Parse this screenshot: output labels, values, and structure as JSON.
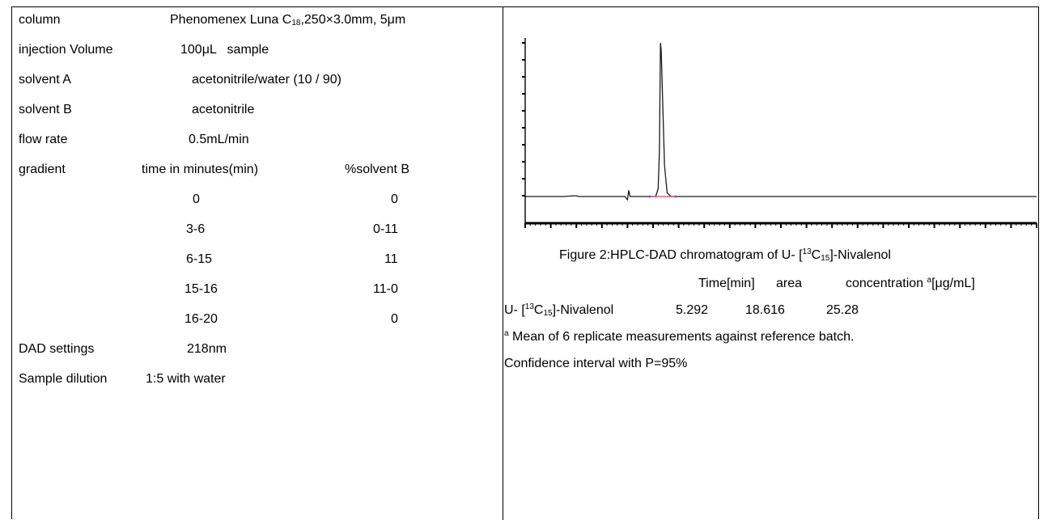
{
  "left": {
    "column_label": "column",
    "column_value_a": "Phenomenex Luna C",
    "column_value_sub": "18",
    "column_value_b": ",250×3.0mm, 5μm",
    "injection_label": "injection Volume",
    "injection_value": "100μL   sample",
    "solvent_a_label": "solvent A",
    "solvent_a_value": "acetonitrile/water (10 / 90)",
    "solvent_b_label": "solvent B",
    "solvent_b_value": "acetonitrile",
    "flow_label": "flow rate",
    "flow_value": "0.5mL/min",
    "gradient_label": "gradient",
    "gradient_time_header": "time in minutes(min)",
    "gradient_b_header": "%solvent B",
    "gradient_rows": [
      {
        "time": "0",
        "b": "0"
      },
      {
        "time": "3-6",
        "b": "0-11"
      },
      {
        "time": "6-15",
        "b": "11"
      },
      {
        "time": "15-16",
        "b": "11-0"
      },
      {
        "time": "16-20",
        "b": "0"
      }
    ],
    "dad_label": "DAD settings",
    "dad_value": "218nm",
    "dilution_label": "Sample dilution",
    "dilution_value": "1:5 with water"
  },
  "right": {
    "figure_caption_a": "Figure 2:HPLC-DAD chromatogram of U- [",
    "figure_caption_sup": "13",
    "figure_caption_c": "C",
    "figure_caption_sub": "15",
    "figure_caption_b": "]-Nivalenol",
    "table_header_time": "Time[min]",
    "table_header_area": "area",
    "table_header_conc": "concentration",
    "table_header_conc_sup": "a",
    "table_header_conc_unit": "[μg/mL]",
    "compound_a": "U- [",
    "compound_sup": "13",
    "compound_c": "C",
    "compound_sub": "15",
    "compound_b": "]-Nivalenol",
    "row_time": "5.292",
    "row_area": "18.616",
    "row_conc": "25.28",
    "footnote_sup": "a",
    "footnote": " Mean of 6 replicate measurements against reference batch.",
    "confidence": "Confidence interval with P=95%"
  },
  "chart_data": {
    "type": "line",
    "title": "",
    "xlabel": "",
    "ylabel": "",
    "x": [
      0,
      1.5,
      1.9,
      2.0,
      2.1,
      3.9,
      4.0,
      4.05,
      4.1,
      5.1,
      5.2,
      5.25,
      5.28,
      5.292,
      5.32,
      5.38,
      5.45,
      5.55,
      5.7,
      6.0,
      8.0,
      12.0,
      16.0,
      20.0
    ],
    "values": [
      0,
      0,
      1,
      1,
      0,
      0,
      -4,
      8,
      0,
      0,
      10,
      60,
      160,
      200,
      190,
      120,
      40,
      5,
      0,
      0,
      0,
      0,
      0,
      0
    ],
    "xlim": [
      0,
      20
    ],
    "ylim": [
      -10,
      200
    ],
    "grid": false
  }
}
